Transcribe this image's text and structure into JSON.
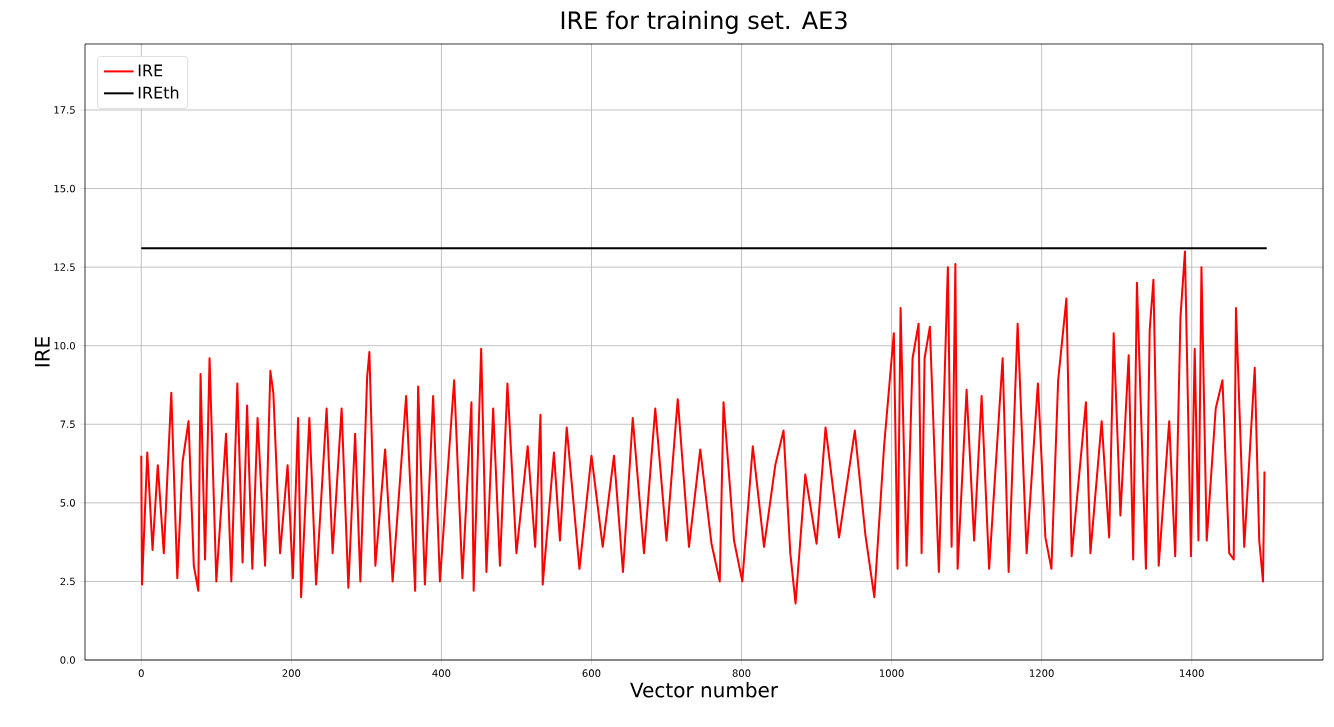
{
  "chart_data": {
    "type": "line",
    "title": "IRE for training set. AE3",
    "xlabel": "Vector number",
    "ylabel": "IRE",
    "xlim": [
      -75,
      1575
    ],
    "ylim": [
      0,
      19.6
    ],
    "xticks": [
      0,
      200,
      400,
      600,
      800,
      1000,
      1200,
      1400
    ],
    "yticks": [
      {
        "value": 0,
        "label": "0.0"
      },
      {
        "value": 2.5,
        "label": "2.5"
      },
      {
        "value": 5,
        "label": "5.0"
      },
      {
        "value": 7.5,
        "label": "7.5"
      },
      {
        "value": 10,
        "label": "10.0"
      },
      {
        "value": 12.5,
        "label": "12.5"
      },
      {
        "value": 15,
        "label": "15.0"
      },
      {
        "value": 17.5,
        "label": "17.5"
      }
    ],
    "grid": true,
    "legend": "top left",
    "marker": "none",
    "line_style": "solid",
    "series": [
      {
        "name": "IRE",
        "color": "#ff0000",
        "x": [
          0,
          1,
          8,
          15,
          22,
          30,
          40,
          48,
          55,
          63,
          70,
          76,
          79,
          85,
          91,
          100,
          113,
          120,
          128,
          135,
          141,
          148,
          155,
          165,
          172,
          176,
          185,
          195,
          202,
          209,
          213,
          224,
          233,
          247,
          255,
          267,
          276,
          285,
          292,
          301,
          304,
          312,
          325,
          335,
          353,
          365,
          369,
          378,
          389,
          398,
          417,
          428,
          440,
          443,
          453,
          460,
          469,
          478,
          488,
          500,
          515,
          525,
          532,
          535,
          550,
          558,
          567,
          584,
          600,
          615,
          630,
          642,
          655,
          670,
          685,
          700,
          715,
          730,
          745,
          760,
          771,
          776,
          790,
          801,
          815,
          830,
          845,
          856,
          865,
          872,
          885,
          900,
          912,
          930,
          951,
          965,
          977,
          990,
          1003,
          1008,
          1012,
          1020,
          1028,
          1036,
          1040,
          1044,
          1051,
          1063,
          1075,
          1080,
          1085,
          1088,
          1100,
          1110,
          1120,
          1130,
          1148,
          1156,
          1168,
          1180,
          1195,
          1205,
          1213,
          1222,
          1233,
          1240,
          1259,
          1265,
          1280,
          1290,
          1296,
          1305,
          1316,
          1322,
          1327,
          1339,
          1344,
          1349,
          1356,
          1370,
          1378,
          1385,
          1391,
          1399,
          1404,
          1409,
          1413,
          1420,
          1432,
          1441,
          1450,
          1456,
          1459,
          1470,
          1484,
          1490,
          1495,
          1497
        ],
        "values": [
          6.5,
          2.4,
          6.6,
          3.5,
          6.2,
          3.4,
          8.5,
          2.6,
          6.3,
          7.6,
          3.0,
          2.2,
          9.1,
          3.2,
          9.6,
          2.5,
          7.2,
          2.5,
          8.8,
          3.1,
          8.1,
          2.9,
          7.7,
          3.0,
          9.2,
          8.5,
          3.4,
          6.2,
          2.6,
          7.7,
          2.0,
          7.7,
          2.4,
          8.0,
          3.4,
          8.0,
          2.3,
          7.2,
          2.5,
          9.0,
          9.8,
          3.0,
          6.7,
          2.5,
          8.4,
          2.2,
          8.7,
          2.4,
          8.4,
          2.5,
          8.9,
          2.6,
          8.2,
          2.2,
          9.9,
          2.8,
          8.0,
          3.0,
          8.8,
          3.4,
          6.8,
          3.6,
          7.8,
          2.4,
          6.6,
          3.8,
          7.4,
          2.9,
          6.5,
          3.6,
          6.5,
          2.8,
          7.7,
          3.4,
          8.0,
          3.8,
          8.3,
          3.6,
          6.7,
          3.7,
          2.5,
          8.2,
          3.8,
          2.5,
          6.8,
          3.6,
          6.2,
          7.3,
          3.4,
          1.8,
          5.9,
          3.7,
          7.4,
          3.9,
          7.3,
          4.0,
          2.0,
          6.8,
          10.4,
          2.9,
          11.2,
          3.0,
          9.6,
          10.7,
          3.4,
          9.6,
          10.6,
          2.8,
          12.5,
          3.6,
          12.6,
          2.9,
          8.6,
          3.8,
          8.4,
          2.9,
          9.6,
          2.8,
          10.7,
          3.4,
          8.8,
          3.9,
          2.9,
          8.9,
          11.5,
          3.3,
          8.2,
          3.4,
          7.6,
          3.9,
          10.4,
          4.6,
          9.7,
          3.2,
          12.0,
          2.9,
          10.5,
          12.1,
          3.0,
          7.6,
          3.3,
          10.9,
          13.0,
          3.3,
          9.9,
          3.8,
          12.5,
          3.8,
          8.0,
          8.9,
          3.4,
          3.2,
          11.2,
          3.6,
          9.3,
          3.8,
          2.5,
          6.0
        ]
      },
      {
        "name": "IREth",
        "color": "#000000",
        "x": [
          0,
          1500
        ],
        "values": [
          13.1,
          13.1
        ]
      }
    ]
  }
}
